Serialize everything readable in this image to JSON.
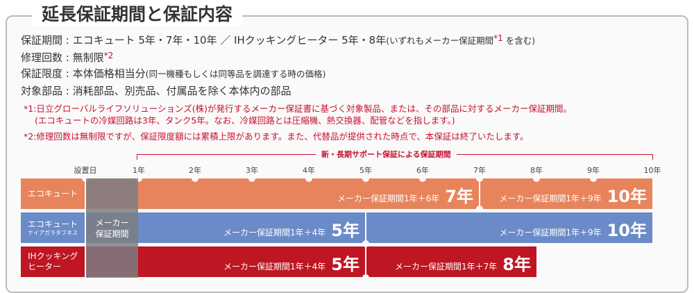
{
  "title": "延長保証期間と保証内容",
  "info": [
    {
      "label": "保証期間",
      "value": "エコキュート 5年・7年・10年 ／ IHクッキングヒーター 5年・8年",
      "paren": "(いずれもメーカー保証期間",
      "mark": "*1",
      "paren_end": " を含む)"
    },
    {
      "label": "修理回数",
      "value": "無制限",
      "mark": "*2"
    },
    {
      "label": "保証限度",
      "value": "本体価格相当分",
      "paren": "(同一機種もしくは同等品を調達する時の価格)"
    },
    {
      "label": "対象部品",
      "value": "消耗部品、別売品、付属品を除く本体内の部品"
    }
  ],
  "notes": [
    "*1:日立グローバルライフソリューションズ(株)が発行するメーカー保証書に基づく対象製品、または、その部品に対するメーカー保証期間。",
    "(エコキュートの冷媒回路は3年、タンク5年。なお、冷媒回路とは圧縮機、熱交換器、配管などを指します。)",
    "*2:修理回数は無制限ですが、保証限度額には累積上限があります。また、代替品が提供された時点で、本保証は終了いたします。"
  ],
  "timeline": {
    "bracket_label": "新・長期サポート保証による保証期間",
    "ticks": [
      "設置日",
      "1年",
      "2年",
      "3年",
      "4年",
      "5年",
      "6年",
      "7年",
      "8年",
      "9年",
      "10年"
    ],
    "maker_label": "メーカー保証期間",
    "colors": {
      "ecocute": "#E8845C",
      "ecocute_niagara": "#6A8BC8",
      "ih": "#BE1622"
    },
    "rows": [
      {
        "name": "エコキュート",
        "sub": "",
        "plans": [
          {
            "detail": "メーカー保証期間1年＋6年",
            "years": "7年"
          },
          {
            "detail": "メーカー保証期間1年＋9年",
            "years": "10年"
          }
        ]
      },
      {
        "name": "エコキュート",
        "sub": "ナイアガラタフネス",
        "plans": [
          {
            "detail": "メーカー保証期間1年＋4年",
            "years": "5年"
          },
          {
            "detail": "メーカー保証期間1年＋9年",
            "years": "10年"
          }
        ]
      },
      {
        "name": "IHクッキング",
        "sub2": "ヒーター",
        "plans": [
          {
            "detail": "メーカー保証期間1年＋4年",
            "years": "5年"
          },
          {
            "detail": "メーカー保証期間1年＋7年",
            "years": "8年"
          }
        ]
      }
    ]
  }
}
